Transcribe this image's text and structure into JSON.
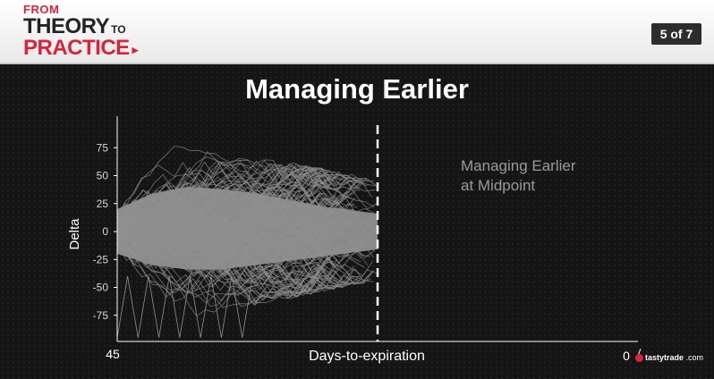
{
  "header": {
    "logo": {
      "from": "FROM",
      "theory": "THEORY",
      "to": "TO",
      "practice": "PRACTICE"
    },
    "page_indicator": "5 of 7"
  },
  "slide": {
    "title": "Managing Earlier",
    "annotation_line1": "Managing Earlier",
    "annotation_line2": "at Midpoint"
  },
  "brand": {
    "name": "tastytrade",
    "suffix": ".com",
    "accent_color": "#d7243b"
  },
  "chart_data": {
    "type": "line",
    "ylabel": "Delta",
    "xlabel": "Days-to-expiration",
    "x_tick_labels": [
      "45",
      "0"
    ],
    "y_ticks": [
      75,
      50,
      25,
      0,
      -25,
      -50,
      -75
    ],
    "xlim": [
      45,
      0
    ],
    "ylim": [
      -100,
      100
    ],
    "grid": false,
    "legend": "none",
    "series_color": "#8f8f8f",
    "reference_line": {
      "x": 22.5,
      "style": "dashed",
      "color": "#ffffff"
    },
    "envelope": {
      "x": [
        45,
        42,
        39,
        36,
        33,
        30,
        27,
        24,
        22.5
      ],
      "upper": [
        85,
        82,
        75,
        70,
        66,
        62,
        56,
        50,
        46
      ],
      "lower": [
        -82,
        -82,
        -78,
        -72,
        -66,
        -60,
        -54,
        -48,
        -45
      ],
      "dense_upper": [
        20,
        34,
        40,
        38,
        34,
        28,
        22,
        18,
        16
      ],
      "dense_lower": [
        -20,
        -30,
        -34,
        -34,
        -30,
        -26,
        -22,
        -18,
        -16
      ]
    }
  }
}
